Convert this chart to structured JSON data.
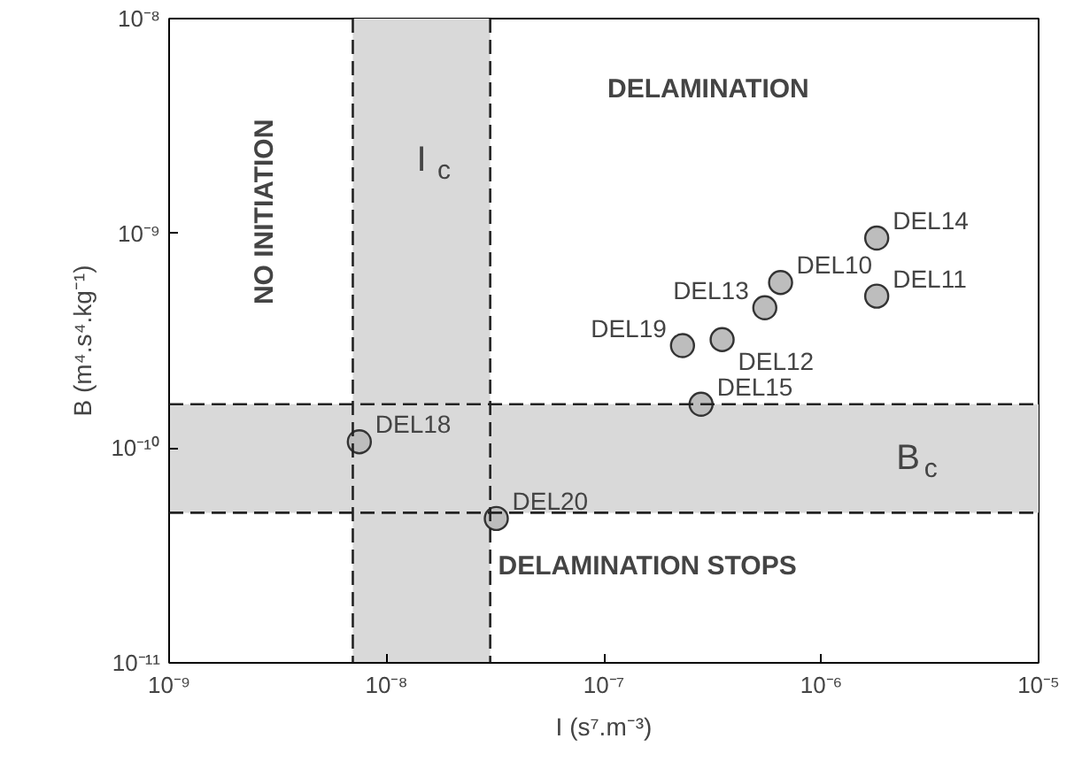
{
  "chart_data": {
    "type": "scatter",
    "xlabel": "I (s⁷.m⁻³)",
    "ylabel": "B (m⁴.s⁴.kg⁻¹)",
    "log": "xy",
    "grid": false,
    "marker": "circle",
    "xlim": [
      1e-09,
      1e-05
    ],
    "ylim": [
      1e-11,
      1e-08
    ],
    "xticks": [
      {
        "value": 1e-09,
        "label": "10⁻⁹"
      },
      {
        "value": 1e-08,
        "label": "10⁻⁸"
      },
      {
        "value": 1e-07,
        "label": "10⁻⁷"
      },
      {
        "value": 1e-06,
        "label": "10⁻⁶"
      },
      {
        "value": 1e-05,
        "label": "10⁻⁵"
      }
    ],
    "yticks": [
      {
        "value": 1e-11,
        "label": "10⁻¹¹"
      },
      {
        "value": 1e-10,
        "label": "10⁻¹⁰"
      },
      {
        "value": 1e-09,
        "label": "10⁻⁹"
      },
      {
        "value": 1e-08,
        "label": "10⁻⁸"
      }
    ],
    "series": [
      {
        "color": "#bdbdbd",
        "x": [
          1.8e-06,
          6.5e-07,
          5.5e-07,
          1.8e-06,
          2.3e-07,
          3.5e-07,
          2.8e-07,
          7.5e-09,
          3.2e-08
        ],
        "values": [
          9.5e-10,
          5.9e-10,
          4.5e-10,
          5.1e-10,
          3e-10,
          3.2e-10,
          1.6e-10,
          1.07e-10,
          4.7e-11
        ]
      }
    ],
    "bands": [
      {
        "axis": "x",
        "from": 7e-09,
        "to": 3e-08,
        "label": "I$_{c}$",
        "color": "#d9d9d9"
      },
      {
        "axis": "y",
        "from": 5e-11,
        "to": 1.6e-10,
        "label": "B$_{c}$",
        "color": "#d9d9d9"
      }
    ],
    "ref_lines": [
      {
        "axis": "x",
        "value": 7e-09,
        "color": "#222222",
        "line_style": "dashed"
      },
      {
        "axis": "x",
        "value": 3e-08,
        "color": "#222222",
        "line_style": "dashed"
      },
      {
        "axis": "y",
        "value": 1.6e-10,
        "color": "#222222",
        "line_style": "dashed"
      },
      {
        "axis": "y",
        "value": 5e-11,
        "color": "#222222",
        "line_style": "dashed"
      }
    ],
    "annotations": [
      {
        "text": "DEL14",
        "x": 1.8e-06,
        "y": 9.5e-10
      },
      {
        "text": "DEL10",
        "x": 6.5e-07,
        "y": 5.9e-10
      },
      {
        "text": "DEL13",
        "x": 5.5e-07,
        "y": 4.5e-10
      },
      {
        "text": "DEL11",
        "x": 1.8e-06,
        "y": 5.1e-10
      },
      {
        "text": "DEL19",
        "x": 2.3e-07,
        "y": 3e-10
      },
      {
        "text": "DEL12",
        "x": 3.5e-07,
        "y": 3.2e-10
      },
      {
        "text": "DEL15",
        "x": 2.8e-07,
        "y": 1.6e-10
      },
      {
        "text": "DEL18",
        "x": 7.5e-09,
        "y": 1.07e-10
      },
      {
        "text": "DEL20",
        "x": 3.2e-08,
        "y": 4.7e-11
      },
      "DELAMINATION",
      "NO INITIATION",
      "DELAMINATION STOPS"
    ]
  }
}
